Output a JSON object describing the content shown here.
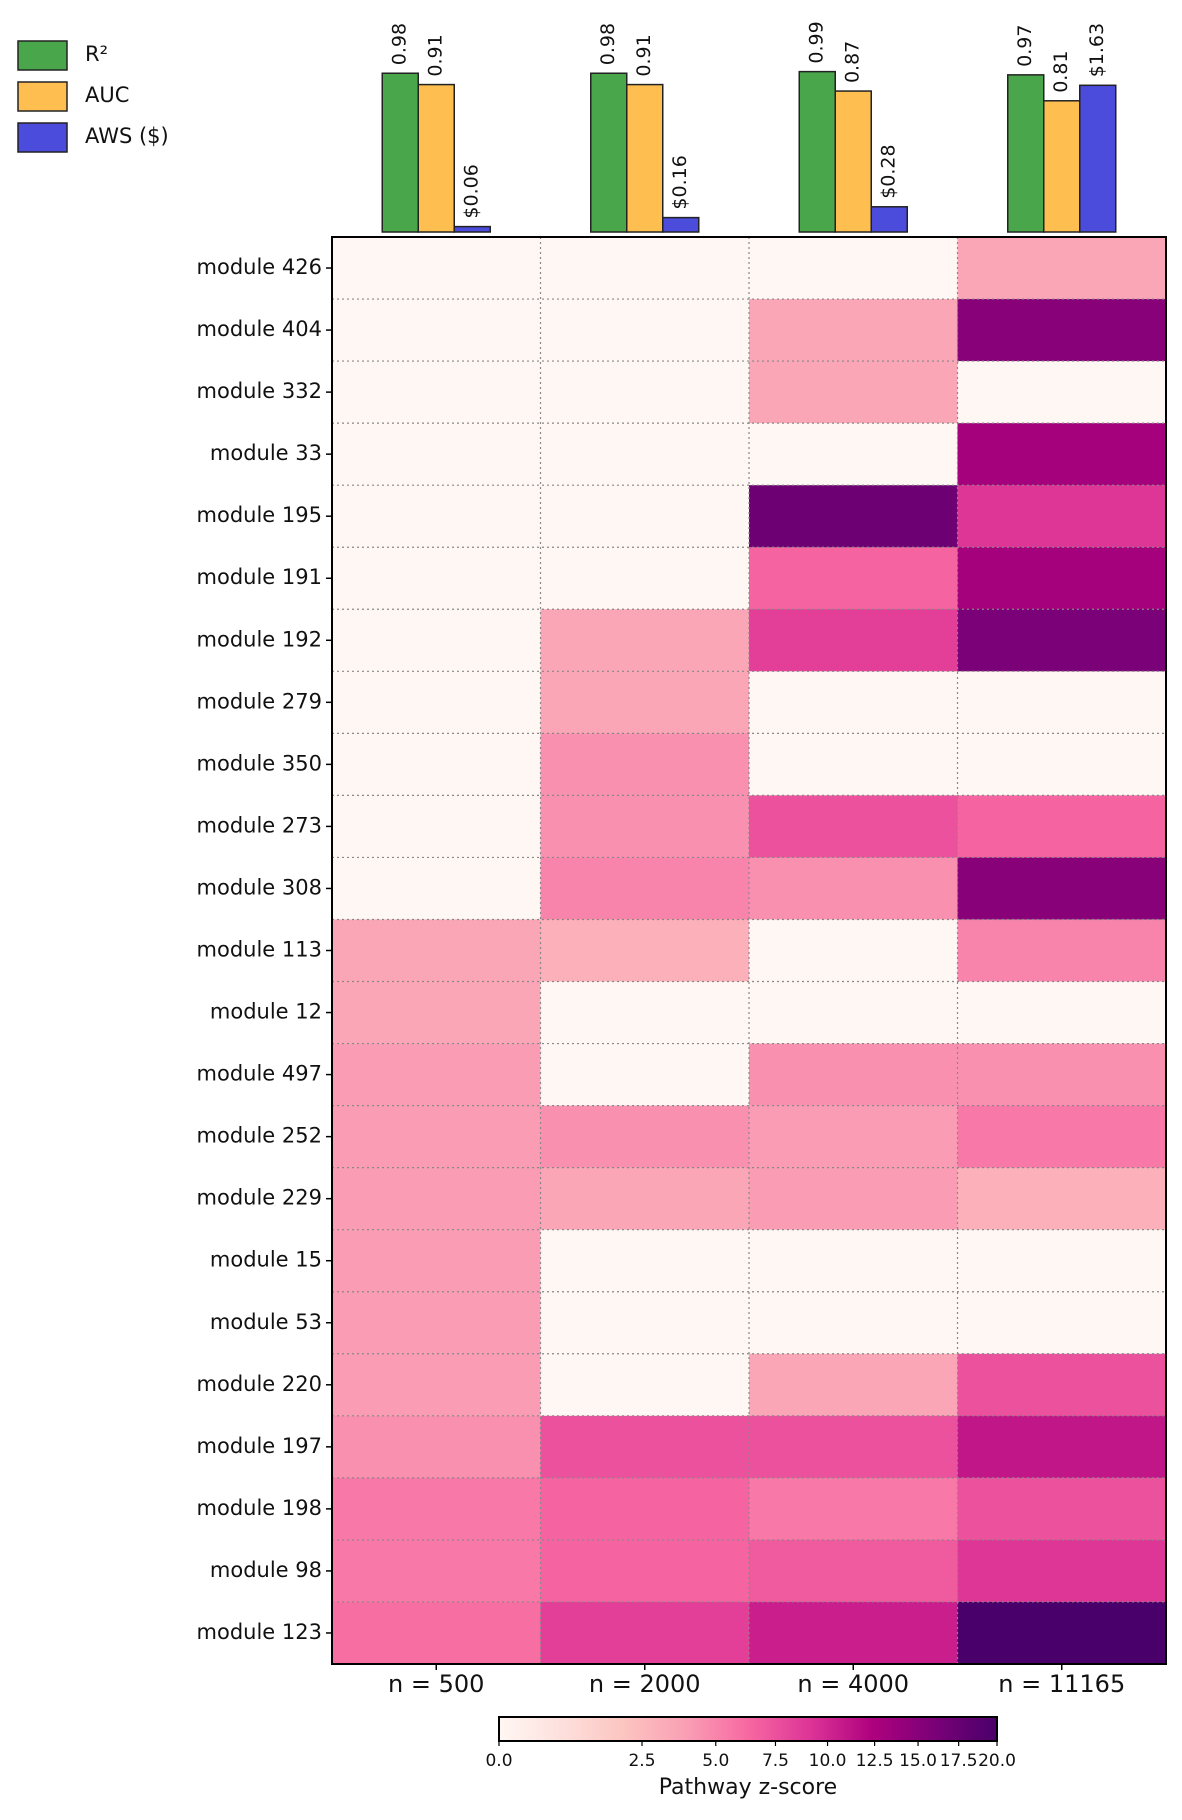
{
  "chart_data": [
    {
      "type": "grouped-bar",
      "series": [
        {
          "name": "R²",
          "color": "#4aa64a",
          "values": [
            0.98,
            0.98,
            0.99,
            0.97
          ]
        },
        {
          "name": "AUC",
          "color": "#ffbf50",
          "values": [
            0.91,
            0.91,
            0.87,
            0.81
          ]
        },
        {
          "name": "AWS ($)",
          "color": "#4b4bdc",
          "axis": "y2",
          "values": [
            0.06,
            0.16,
            0.28,
            1.63
          ],
          "value_labels": [
            "$0.06",
            "$0.16",
            "$0.28",
            "$1.63"
          ]
        }
      ],
      "ylim": [
        0,
        1
      ],
      "y2lim": [
        0,
        1.8
      ],
      "legend": "upper left"
    },
    {
      "type": "heatmap",
      "rows": [
        "module 426",
        "module 404",
        "module 332",
        "module 33",
        "module 195",
        "module 191",
        "module 192",
        "module 279",
        "module 350",
        "module 273",
        "module 308",
        "module 113",
        "module 12",
        "module 497",
        "module 252",
        "module 229",
        "module 15",
        "module 53",
        "module 220",
        "module 197",
        "module 198",
        "module 98",
        "module 123"
      ],
      "columns": [
        "n = 500",
        "n = 2000",
        "n = 4000",
        "n = 11165"
      ],
      "values": [
        [
          0,
          0,
          0,
          3.5
        ],
        [
          0,
          0,
          3.5,
          15
        ],
        [
          0,
          0,
          3.5,
          0
        ],
        [
          0,
          0,
          0,
          13
        ],
        [
          0,
          0,
          17,
          9
        ],
        [
          0,
          0,
          6.5,
          13
        ],
        [
          0,
          3.5,
          8.5,
          16
        ],
        [
          0,
          3.5,
          0,
          0
        ],
        [
          0,
          4.5,
          0,
          0
        ],
        [
          0,
          4.5,
          7.5,
          6.5
        ],
        [
          0,
          5,
          4.5,
          15
        ],
        [
          3.5,
          3,
          0,
          5
        ],
        [
          3.5,
          0,
          0,
          0
        ],
        [
          4,
          0,
          4.5,
          4.5
        ],
        [
          4,
          4.5,
          4,
          5.5
        ],
        [
          4,
          3.5,
          4,
          3
        ],
        [
          4,
          0,
          0,
          0
        ],
        [
          4,
          0,
          0,
          0
        ],
        [
          4,
          0,
          3.5,
          7.5
        ],
        [
          4.5,
          7.5,
          7.5,
          11
        ],
        [
          5.5,
          6.5,
          5.5,
          7.5
        ],
        [
          5.5,
          6.5,
          7,
          9
        ],
        [
          6,
          8.5,
          10.5,
          20
        ]
      ],
      "colormap": "RdPu",
      "color_scale": {
        "type": "power",
        "gamma": 0.6
      },
      "clim": [
        0,
        20
      ],
      "colorbar_ticks": [
        {
          "value": 0,
          "label": "0.0"
        },
        2.5,
        {
          "value": 5,
          "label": "5.0"
        },
        7.5,
        {
          "value": 10,
          "label": "10.0"
        },
        12.5,
        {
          "value": 15,
          "label": "15.0"
        },
        17.5,
        {
          "value": 20,
          "label": "20.0"
        }
      ],
      "colorbar_label": "Pathway z-score",
      "grid": true
    }
  ]
}
